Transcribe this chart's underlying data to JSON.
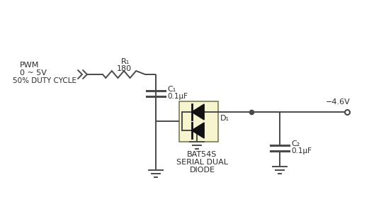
{
  "bg_color": "#ffffff",
  "line_color": "#4a4a4a",
  "line_width": 1.4,
  "diode_box_color": "#f7f4d0",
  "diode_box_edge": "#7a7a5a",
  "text_color": "#2a2a2a",
  "labels": {
    "pwm": "PWM",
    "volt": "0 ~ 5V",
    "duty": "50% DUTY CYCLE",
    "r1_name": "R₁",
    "r1_val": "180",
    "c1_name": "C₁",
    "c1_val": "0.1μF",
    "c2_name": "C₂",
    "c2_val": "0.1μF",
    "d1_name": "D₁",
    "bat": "BAT54S",
    "serial": "SERIAL DUAL",
    "diode_label": "DIODE",
    "voltage": "−4.6V"
  }
}
